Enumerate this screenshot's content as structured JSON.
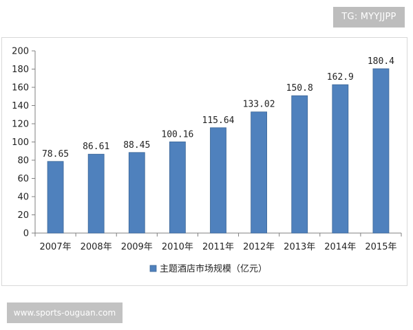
{
  "watermarks": {
    "top_right": "TG: MYYJJPP",
    "bottom_left": "www.sports-ouguan.com"
  },
  "colors": {
    "bar": "#4f81bd",
    "bar_border": "#3c6696",
    "axis": "#7f7f7f",
    "gridline": "#bfbfbf"
  },
  "chart_data": {
    "type": "bar",
    "title": "",
    "xlabel": "",
    "ylabel": "",
    "categories": [
      "2007年",
      "2008年",
      "2009年",
      "2010年",
      "2011年",
      "2012年",
      "2013年",
      "2014年",
      "2015年"
    ],
    "series": [
      {
        "name": "主题酒店市场规模（亿元）",
        "values": [
          78.65,
          86.61,
          88.45,
          100.16,
          115.64,
          133.02,
          150.8,
          162.9,
          180.4
        ],
        "labels": [
          "78.65",
          "86.61",
          "88.45",
          "100.16",
          "115.64",
          "133.02",
          "150.8",
          "162.9",
          "180.4"
        ]
      }
    ],
    "ylim": [
      0,
      200
    ],
    "yticks": [
      "0",
      "20",
      "40",
      "60",
      "80",
      "100",
      "120",
      "140",
      "160",
      "180",
      "200"
    ],
    "grid": false,
    "legend_position": "bottom"
  }
}
